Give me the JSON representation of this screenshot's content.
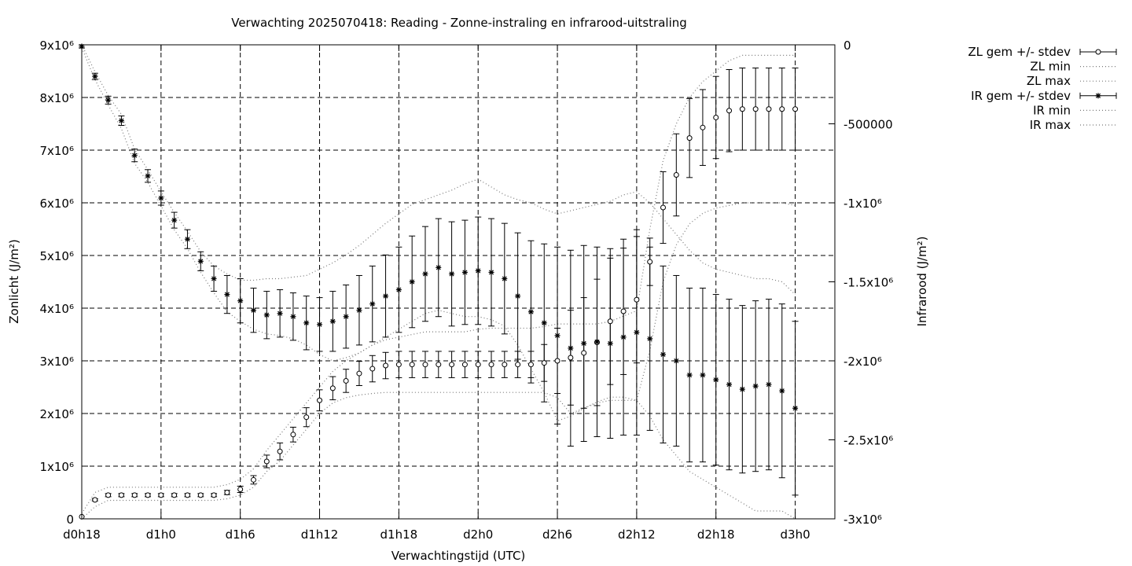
{
  "chart_data": {
    "type": "line",
    "title": "Verwachting 2025070418: Reading - Zonne-instraling en infrarood-uitstraling",
    "xlabel": "Verwachtingstijd (UTC)",
    "ylabel": "Zonlicht (J/m²)",
    "y2label": "Infrarood (J/m²)",
    "xlim": [
      18,
      75
    ],
    "ylim": [
      0,
      9000000
    ],
    "y2lim": [
      -3000000,
      0
    ],
    "grid": true,
    "legend_position": "outside-top-right",
    "x_ticks": [
      {
        "value": 18,
        "label": "d0h18"
      },
      {
        "value": 24,
        "label": "d1h0"
      },
      {
        "value": 30,
        "label": "d1h6"
      },
      {
        "value": 36,
        "label": "d1h12"
      },
      {
        "value": 42,
        "label": "d1h18"
      },
      {
        "value": 48,
        "label": "d2h0"
      },
      {
        "value": 54,
        "label": "d2h6"
      },
      {
        "value": 60,
        "label": "d2h12"
      },
      {
        "value": 66,
        "label": "d2h18"
      },
      {
        "value": 72,
        "label": "d3h0"
      }
    ],
    "y_ticks": [
      {
        "value": 0,
        "label": "0"
      },
      {
        "value": 1000000,
        "label": "1x10⁶"
      },
      {
        "value": 2000000,
        "label": "2x10⁶"
      },
      {
        "value": 3000000,
        "label": "3x10⁶"
      },
      {
        "value": 4000000,
        "label": "4x10⁶"
      },
      {
        "value": 5000000,
        "label": "5x10⁶"
      },
      {
        "value": 6000000,
        "label": "6x10⁶"
      },
      {
        "value": 7000000,
        "label": "7x10⁶"
      },
      {
        "value": 8000000,
        "label": "8x10⁶"
      },
      {
        "value": 9000000,
        "label": "9x10⁶"
      }
    ],
    "y2_ticks": [
      {
        "value": 0,
        "label": "0"
      },
      {
        "value": -500000,
        "label": "-500000"
      },
      {
        "value": -1000000,
        "label": "-1x10⁶"
      },
      {
        "value": -1500000,
        "label": "-1.5x10⁶"
      },
      {
        "value": -2000000,
        "label": "-2x10⁶"
      },
      {
        "value": -2500000,
        "label": "-2.5x10⁶"
      },
      {
        "value": -3000000,
        "label": "-3x10⁶"
      }
    ],
    "x": [
      18,
      19,
      20,
      21,
      22,
      23,
      24,
      25,
      26,
      27,
      28,
      29,
      30,
      31,
      32,
      33,
      34,
      35,
      36,
      37,
      38,
      39,
      40,
      41,
      42,
      43,
      44,
      45,
      46,
      47,
      48,
      49,
      50,
      51,
      52,
      53,
      54,
      55,
      56,
      57,
      58,
      59,
      60,
      61,
      62,
      63,
      64,
      65,
      66,
      67,
      68,
      69,
      70,
      71,
      72
    ],
    "series": [
      {
        "name": "ZL gem +/- stdev",
        "axis": "y",
        "marker": "circle",
        "values": [
          40000,
          360000,
          450000,
          450000,
          450000,
          450000,
          450000,
          450000,
          450000,
          450000,
          450000,
          500000,
          560000,
          740000,
          1090000,
          1280000,
          1600000,
          1930000,
          2250000,
          2480000,
          2620000,
          2760000,
          2850000,
          2910000,
          2930000,
          2930000,
          2930000,
          2930000,
          2930000,
          2930000,
          2930000,
          2930000,
          2930000,
          2930000,
          2930000,
          2960000,
          3000000,
          3060000,
          3150000,
          3350000,
          3750000,
          3940000,
          4160000,
          4880000,
          5910000,
          6530000,
          7230000,
          7430000,
          7620000,
          7750000,
          7780000,
          7780000,
          7780000,
          7780000,
          7780000
        ],
        "stdev": [
          0,
          20000,
          30000,
          30000,
          30000,
          30000,
          30000,
          30000,
          30000,
          30000,
          30000,
          40000,
          60000,
          80000,
          120000,
          160000,
          140000,
          180000,
          200000,
          220000,
          220000,
          230000,
          250000,
          250000,
          250000,
          250000,
          250000,
          250000,
          250000,
          250000,
          250000,
          250000,
          250000,
          250000,
          250000,
          350000,
          620000,
          900000,
          1050000,
          1200000,
          1200000,
          1200000,
          1200000,
          450000,
          680000,
          780000,
          750000,
          720000,
          780000,
          780000,
          780000,
          780000,
          780000,
          780000,
          780000
        ]
      },
      {
        "name": "ZL min",
        "axis": "y",
        "values": [
          0,
          230000,
          350000,
          350000,
          350000,
          350000,
          350000,
          350000,
          350000,
          350000,
          350000,
          380000,
          450000,
          600000,
          900000,
          1100000,
          1400000,
          1700000,
          2000000,
          2200000,
          2300000,
          2350000,
          2380000,
          2400000,
          2400000,
          2400000,
          2400000,
          2400000,
          2400000,
          2400000,
          2400000,
          2400000,
          2400000,
          2400000,
          2400000,
          2400000,
          2300000,
          2000000,
          2100000,
          2200000,
          2250000,
          2250000,
          2250000,
          3200000,
          4500000,
          5200000,
          5600000,
          5800000,
          5900000,
          5950000,
          6000000,
          6000000,
          6000000,
          6000000,
          5950000
        ]
      },
      {
        "name": "ZL max",
        "axis": "y",
        "values": [
          100000,
          500000,
          600000,
          600000,
          600000,
          600000,
          600000,
          600000,
          600000,
          600000,
          600000,
          650000,
          750000,
          950000,
          1300000,
          1600000,
          1900000,
          2200000,
          2500000,
          2800000,
          3000000,
          3150000,
          3300000,
          3400000,
          3450000,
          3500000,
          3550000,
          3550000,
          3550000,
          3550000,
          3600000,
          3620000,
          3620000,
          3620000,
          3620000,
          3650000,
          3700000,
          3700000,
          3700000,
          3700000,
          3750000,
          3850000,
          3950000,
          5500000,
          6800000,
          7500000,
          8000000,
          8300000,
          8500000,
          8700000,
          8800000,
          8800000,
          8800000,
          8800000,
          8800000
        ]
      },
      {
        "name": "IR gem +/- stdev",
        "axis": "y2",
        "marker": "star",
        "values": [
          -10000,
          -200000,
          -350000,
          -480000,
          -700000,
          -830000,
          -970000,
          -1110000,
          -1230000,
          -1370000,
          -1480000,
          -1580000,
          -1620000,
          -1680000,
          -1710000,
          -1700000,
          -1720000,
          -1760000,
          -1770000,
          -1750000,
          -1720000,
          -1680000,
          -1640000,
          -1590000,
          -1550000,
          -1500000,
          -1450000,
          -1410000,
          -1450000,
          -1440000,
          -1430000,
          -1440000,
          -1480000,
          -1590000,
          -1690000,
          -1760000,
          -1840000,
          -1920000,
          -1890000,
          -1880000,
          -1890000,
          -1850000,
          -1820000,
          -1860000,
          -1960000,
          -2000000,
          -2090000,
          -2090000,
          -2120000,
          -2150000,
          -2180000,
          -2160000,
          -2150000,
          -2190000,
          -2300000
        ],
        "stdev": [
          10000,
          20000,
          25000,
          30000,
          40000,
          40000,
          45000,
          50000,
          60000,
          60000,
          80000,
          120000,
          140000,
          140000,
          150000,
          150000,
          150000,
          170000,
          170000,
          190000,
          200000,
          220000,
          240000,
          260000,
          270000,
          290000,
          300000,
          310000,
          330000,
          330000,
          340000,
          340000,
          350000,
          400000,
          450000,
          500000,
          560000,
          620000,
          620000,
          600000,
          600000,
          620000,
          650000,
          580000,
          560000,
          540000,
          550000,
          550000,
          540000,
          540000,
          530000,
          540000,
          540000,
          550000,
          550000
        ]
      },
      {
        "name": "IR min",
        "axis": "y2",
        "values": [
          -20000,
          -220000,
          -380000,
          -530000,
          -750000,
          -870000,
          -1020000,
          -1170000,
          -1290000,
          -1440000,
          -1570000,
          -1690000,
          -1750000,
          -1800000,
          -1830000,
          -1840000,
          -1860000,
          -1900000,
          -1960000,
          -2000000,
          -1980000,
          -1950000,
          -1900000,
          -1850000,
          -1800000,
          -1750000,
          -1700000,
          -1680000,
          -1700000,
          -1720000,
          -1720000,
          -1740000,
          -1780000,
          -1900000,
          -2050000,
          -2200000,
          -2380000,
          -2350000,
          -2300000,
          -2260000,
          -2230000,
          -2230000,
          -2250000,
          -2350000,
          -2500000,
          -2600000,
          -2700000,
          -2750000,
          -2800000,
          -2850000,
          -2900000,
          -2950000,
          -2950000,
          -2950000,
          -3000000
        ]
      },
      {
        "name": "IR max",
        "axis": "y2",
        "values": [
          0,
          -170000,
          -320000,
          -440000,
          -660000,
          -790000,
          -930000,
          -1060000,
          -1180000,
          -1310000,
          -1400000,
          -1450000,
          -1490000,
          -1490000,
          -1480000,
          -1480000,
          -1470000,
          -1460000,
          -1420000,
          -1380000,
          -1330000,
          -1270000,
          -1200000,
          -1130000,
          -1070000,
          -1010000,
          -980000,
          -950000,
          -920000,
          -880000,
          -850000,
          -900000,
          -950000,
          -980000,
          -1000000,
          -1040000,
          -1070000,
          -1050000,
          -1030000,
          -1010000,
          -990000,
          -950000,
          -930000,
          -1000000,
          -1100000,
          -1200000,
          -1300000,
          -1380000,
          -1420000,
          -1440000,
          -1460000,
          -1480000,
          -1480000,
          -1500000,
          -1580000
        ]
      }
    ]
  }
}
